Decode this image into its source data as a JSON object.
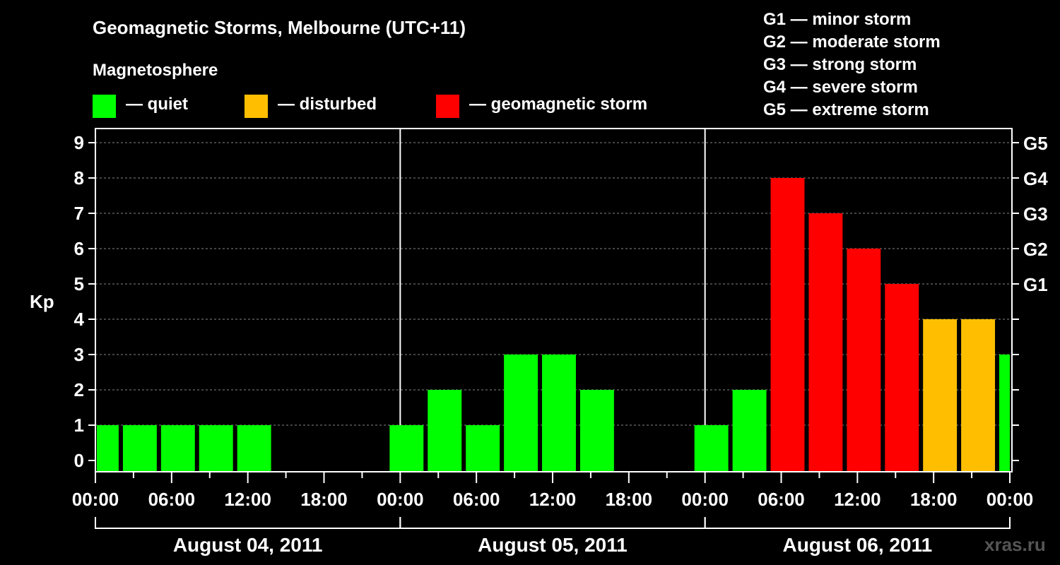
{
  "chart_data": {
    "type": "bar",
    "title": "Geomagnetic Storms, Melbourne (UTC+11)",
    "legend_title": "Magnetosphere",
    "legend": [
      {
        "label": "— quiet",
        "color": "#00ff00"
      },
      {
        "label": "— disturbed",
        "color": "#ffbf00"
      },
      {
        "label": "— geomagnetic storm",
        "color": "#ff0000"
      }
    ],
    "scale_legend": [
      "G1 — minor storm",
      "G2 — moderate storm",
      "G3 — strong storm",
      "G4 — severe storm",
      "G5 — extreme storm"
    ],
    "ylabel": "Kp",
    "ylim": [
      0,
      9
    ],
    "yticks": [
      "0",
      "1",
      "2",
      "3",
      "4",
      "5",
      "6",
      "7",
      "8",
      "9"
    ],
    "right_ticks": [
      {
        "kp": 5,
        "label": "G1"
      },
      {
        "kp": 6,
        "label": "G2"
      },
      {
        "kp": 7,
        "label": "G3"
      },
      {
        "kp": 8,
        "label": "G4"
      },
      {
        "kp": 9,
        "label": "G5"
      }
    ],
    "xlim_hours": [
      0,
      72
    ],
    "xtick_labels": [
      "00:00",
      "06:00",
      "12:00",
      "18:00",
      "00:00",
      "06:00",
      "12:00",
      "18:00",
      "00:00",
      "06:00",
      "12:00",
      "18:00",
      "00:00"
    ],
    "days": [
      "August 04, 2011",
      "August 05, 2011",
      "August 06, 2011"
    ],
    "grid": "dashed horizontal",
    "bars": [
      {
        "start_hour": -1,
        "kp": 1
      },
      {
        "start_hour": 2,
        "kp": 1
      },
      {
        "start_hour": 5,
        "kp": 1
      },
      {
        "start_hour": 8,
        "kp": 1
      },
      {
        "start_hour": 11,
        "kp": 1
      },
      {
        "start_hour": 23,
        "kp": 1
      },
      {
        "start_hour": 26,
        "kp": 2
      },
      {
        "start_hour": 29,
        "kp": 1
      },
      {
        "start_hour": 32,
        "kp": 3
      },
      {
        "start_hour": 35,
        "kp": 3
      },
      {
        "start_hour": 38,
        "kp": 2
      },
      {
        "start_hour": 47,
        "kp": 1
      },
      {
        "start_hour": 50,
        "kp": 2
      },
      {
        "start_hour": 53,
        "kp": 8
      },
      {
        "start_hour": 56,
        "kp": 7
      },
      {
        "start_hour": 59,
        "kp": 6
      },
      {
        "start_hour": 62,
        "kp": 5
      },
      {
        "start_hour": 65,
        "kp": 4
      },
      {
        "start_hour": 68,
        "kp": 4
      },
      {
        "start_hour": 71,
        "kp": 3
      }
    ],
    "colors": {
      "quiet": "#00ff00",
      "disturbed": "#ffbf00",
      "storm": "#ff0000"
    }
  },
  "watermark": "xras.ru"
}
